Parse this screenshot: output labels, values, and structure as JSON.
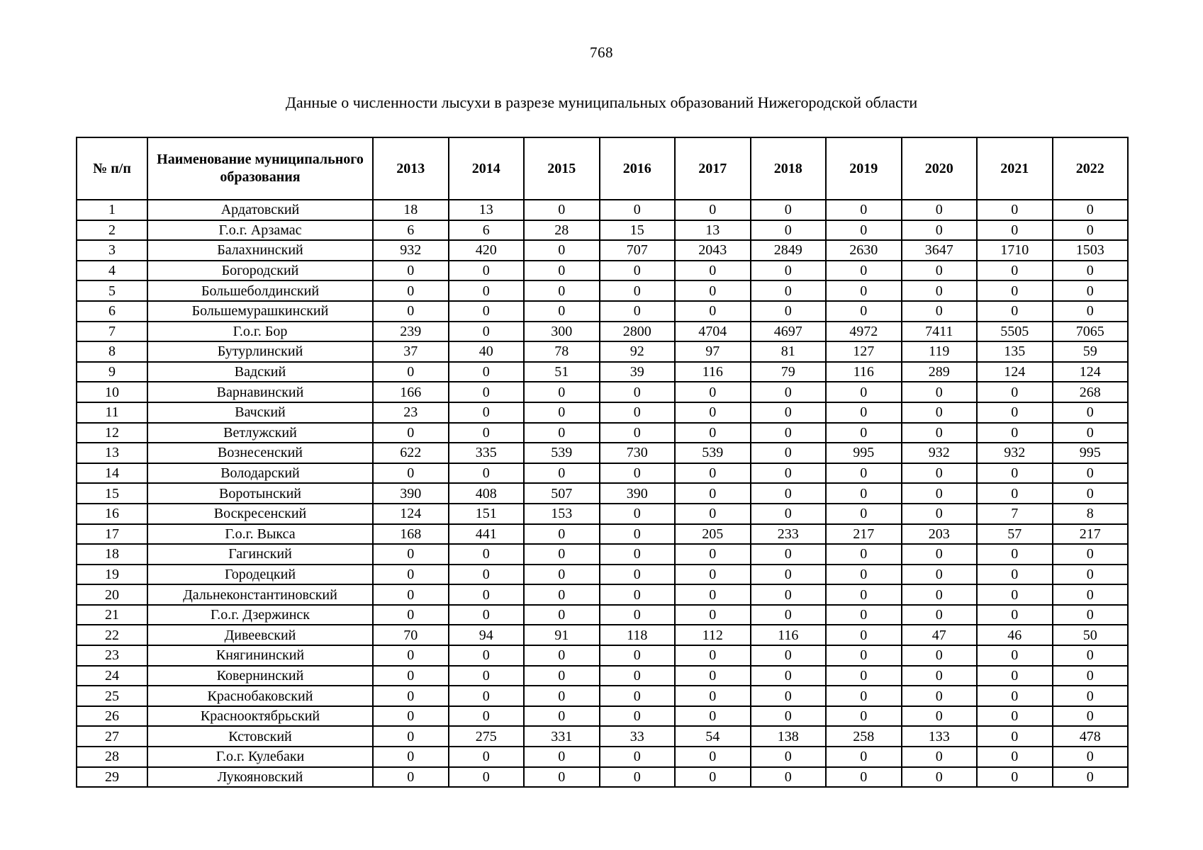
{
  "page": {
    "number": "768"
  },
  "title": "Данные о численности лысухи в разрезе муниципальных образований Нижегородской области",
  "table": {
    "headers": {
      "index": "№ п/п",
      "name": "Наименование муниципального образования",
      "years": [
        "2013",
        "2014",
        "2015",
        "2016",
        "2017",
        "2018",
        "2019",
        "2020",
        "2021",
        "2022"
      ]
    },
    "rows": [
      {
        "index": "1",
        "name": "Ардатовский",
        "values": [
          "18",
          "13",
          "0",
          "0",
          "0",
          "0",
          "0",
          "0",
          "0",
          "0"
        ]
      },
      {
        "index": "2",
        "name": "Г.о.г. Арзамас",
        "values": [
          "6",
          "6",
          "28",
          "15",
          "13",
          "0",
          "0",
          "0",
          "0",
          "0"
        ]
      },
      {
        "index": "3",
        "name": "Балахнинский",
        "values": [
          "932",
          "420",
          "0",
          "707",
          "2043",
          "2849",
          "2630",
          "3647",
          "1710",
          "1503"
        ]
      },
      {
        "index": "4",
        "name": "Богородский",
        "values": [
          "0",
          "0",
          "0",
          "0",
          "0",
          "0",
          "0",
          "0",
          "0",
          "0"
        ]
      },
      {
        "index": "5",
        "name": "Большеболдинский",
        "values": [
          "0",
          "0",
          "0",
          "0",
          "0",
          "0",
          "0",
          "0",
          "0",
          "0"
        ]
      },
      {
        "index": "6",
        "name": "Большемурашкинский",
        "values": [
          "0",
          "0",
          "0",
          "0",
          "0",
          "0",
          "0",
          "0",
          "0",
          "0"
        ]
      },
      {
        "index": "7",
        "name": "Г.о.г. Бор",
        "values": [
          "239",
          "0",
          "300",
          "2800",
          "4704",
          "4697",
          "4972",
          "7411",
          "5505",
          "7065"
        ]
      },
      {
        "index": "8",
        "name": "Бутурлинский",
        "values": [
          "37",
          "40",
          "78",
          "92",
          "97",
          "81",
          "127",
          "119",
          "135",
          "59"
        ]
      },
      {
        "index": "9",
        "name": "Вадский",
        "values": [
          "0",
          "0",
          "51",
          "39",
          "116",
          "79",
          "116",
          "289",
          "124",
          "124"
        ]
      },
      {
        "index": "10",
        "name": "Варнавинский",
        "values": [
          "166",
          "0",
          "0",
          "0",
          "0",
          "0",
          "0",
          "0",
          "0",
          "268"
        ]
      },
      {
        "index": "11",
        "name": "Вачский",
        "values": [
          "23",
          "0",
          "0",
          "0",
          "0",
          "0",
          "0",
          "0",
          "0",
          "0"
        ]
      },
      {
        "index": "12",
        "name": "Ветлужский",
        "values": [
          "0",
          "0",
          "0",
          "0",
          "0",
          "0",
          "0",
          "0",
          "0",
          "0"
        ]
      },
      {
        "index": "13",
        "name": "Вознесенский",
        "values": [
          "622",
          "335",
          "539",
          "730",
          "539",
          "0",
          "995",
          "932",
          "932",
          "995"
        ]
      },
      {
        "index": "14",
        "name": "Володарский",
        "values": [
          "0",
          "0",
          "0",
          "0",
          "0",
          "0",
          "0",
          "0",
          "0",
          "0"
        ]
      },
      {
        "index": "15",
        "name": "Воротынский",
        "values": [
          "390",
          "408",
          "507",
          "390",
          "0",
          "0",
          "0",
          "0",
          "0",
          "0"
        ]
      },
      {
        "index": "16",
        "name": "Воскресенский",
        "values": [
          "124",
          "151",
          "153",
          "0",
          "0",
          "0",
          "0",
          "0",
          "7",
          "8"
        ]
      },
      {
        "index": "17",
        "name": "Г.о.г. Выкса",
        "values": [
          "168",
          "441",
          "0",
          "0",
          "205",
          "233",
          "217",
          "203",
          "57",
          "217"
        ]
      },
      {
        "index": "18",
        "name": "Гагинский",
        "values": [
          "0",
          "0",
          "0",
          "0",
          "0",
          "0",
          "0",
          "0",
          "0",
          "0"
        ]
      },
      {
        "index": "19",
        "name": "Городецкий",
        "values": [
          "0",
          "0",
          "0",
          "0",
          "0",
          "0",
          "0",
          "0",
          "0",
          "0"
        ]
      },
      {
        "index": "20",
        "name": "Дальнеконстантиновский",
        "values": [
          "0",
          "0",
          "0",
          "0",
          "0",
          "0",
          "0",
          "0",
          "0",
          "0"
        ]
      },
      {
        "index": "21",
        "name": "Г.о.г. Дзержинск",
        "values": [
          "0",
          "0",
          "0",
          "0",
          "0",
          "0",
          "0",
          "0",
          "0",
          "0"
        ]
      },
      {
        "index": "22",
        "name": "Дивеевский",
        "values": [
          "70",
          "94",
          "91",
          "118",
          "112",
          "116",
          "0",
          "47",
          "46",
          "50"
        ]
      },
      {
        "index": "23",
        "name": "Княгининский",
        "values": [
          "0",
          "0",
          "0",
          "0",
          "0",
          "0",
          "0",
          "0",
          "0",
          "0"
        ]
      },
      {
        "index": "24",
        "name": "Ковернинский",
        "values": [
          "0",
          "0",
          "0",
          "0",
          "0",
          "0",
          "0",
          "0",
          "0",
          "0"
        ]
      },
      {
        "index": "25",
        "name": "Краснобаковский",
        "values": [
          "0",
          "0",
          "0",
          "0",
          "0",
          "0",
          "0",
          "0",
          "0",
          "0"
        ]
      },
      {
        "index": "26",
        "name": "Краснооктябрьский",
        "values": [
          "0",
          "0",
          "0",
          "0",
          "0",
          "0",
          "0",
          "0",
          "0",
          "0"
        ]
      },
      {
        "index": "27",
        "name": "Кстовский",
        "values": [
          "0",
          "275",
          "331",
          "33",
          "54",
          "138",
          "258",
          "133",
          "0",
          "478"
        ]
      },
      {
        "index": "28",
        "name": "Г.о.г. Кулебаки",
        "values": [
          "0",
          "0",
          "0",
          "0",
          "0",
          "0",
          "0",
          "0",
          "0",
          "0"
        ]
      },
      {
        "index": "29",
        "name": "Лукояновский",
        "values": [
          "0",
          "0",
          "0",
          "0",
          "0",
          "0",
          "0",
          "0",
          "0",
          "0"
        ]
      }
    ]
  }
}
